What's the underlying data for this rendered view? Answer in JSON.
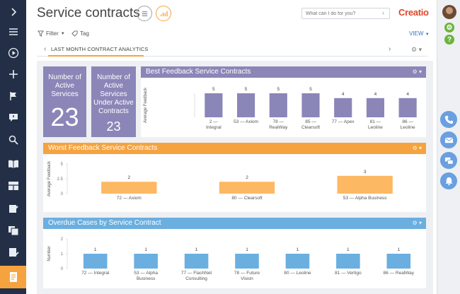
{
  "header": {
    "title": "Service contracts",
    "search_placeholder": "What can I do for you?",
    "logo": "Creatio"
  },
  "toolbar": {
    "filter_label": "Filter",
    "tag_label": "Tag",
    "view_label": "VIEW"
  },
  "tabs": {
    "active_label": "LAST MONTH CONTRACT ANALYTICS"
  },
  "sidebar": {
    "items": [
      {
        "icon": "chevron-right-icon"
      },
      {
        "icon": "menu-icon"
      },
      {
        "icon": "play-icon"
      },
      {
        "icon": "plus-icon"
      },
      {
        "icon": "flag-icon"
      },
      {
        "icon": "feedback-icon"
      },
      {
        "icon": "search-people-icon"
      },
      {
        "icon": "book-icon"
      },
      {
        "icon": "layout-icon"
      },
      {
        "icon": "document-edit-icon"
      },
      {
        "icon": "copy-icon"
      },
      {
        "icon": "document-check-icon"
      },
      {
        "icon": "service-contract-icon",
        "active": true
      }
    ]
  },
  "rightbar": {
    "icons": [
      "avatar",
      "gear-icon",
      "help-icon",
      "phone-icon",
      "email-icon",
      "chat-icon",
      "bell-icon"
    ]
  },
  "colors": {
    "purple": "#8a86b8",
    "orange": "#f5a33f",
    "orange_bar": "#fdb863",
    "blue": "#6aafe0",
    "blue_bar": "#6aafe0",
    "sidebar": "#232f46"
  },
  "kpis": [
    {
      "caption": "Number of Active Services",
      "value": "23"
    },
    {
      "caption": "Number of Active Services Under Active Contracts",
      "value": "23"
    }
  ],
  "chart_data": [
    {
      "type": "bar",
      "title": "Best Feedback Service Contracts",
      "ylabel": "Average Feedback",
      "categories": [
        "2 — Integral",
        "53 — Axiom",
        "78 — RealWay",
        "85 — Clearsoft",
        "77 — Apex",
        "81 — Leoline",
        "86 — Leoline"
      ],
      "values": [
        5,
        5,
        5,
        5,
        4,
        4,
        4
      ],
      "ylim": [
        0,
        5
      ]
    },
    {
      "type": "bar",
      "title": "Worst Feedback Service Contracts",
      "ylabel": "Average Feedback",
      "categories": [
        "72 — Axiom",
        "80 — Clearsoft",
        "53 — Alpha Business"
      ],
      "values": [
        2,
        2,
        3
      ],
      "yticks": [
        "5",
        "2.5",
        "0"
      ],
      "ylim": [
        0,
        5
      ]
    },
    {
      "type": "bar",
      "title": "Overdue Cases by Service Contract",
      "ylabel": "Number",
      "categories": [
        "72 — Integral",
        "53 — Alpha Business",
        "77 — FlashNet Consulting",
        "78 — Future Vision",
        "80 — Leoline",
        "81 — Vertigo",
        "86 — RealWay"
      ],
      "values": [
        1,
        1,
        1,
        1,
        1,
        1,
        1
      ],
      "yticks": [
        "2",
        "1",
        "0"
      ],
      "ylim": [
        0,
        2
      ]
    }
  ]
}
